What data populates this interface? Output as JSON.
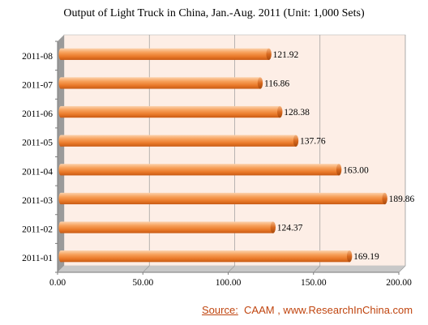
{
  "chart_data": {
    "type": "bar",
    "orientation": "horizontal",
    "title": "Output of Light Truck in China, Jan.-Aug. 2011  (Unit: 1,000 Sets)",
    "categories": [
      "2011-01",
      "2011-02",
      "2011-03",
      "2011-04",
      "2011-05",
      "2011-06",
      "2011-07",
      "2011-08"
    ],
    "values": [
      169.19,
      124.37,
      189.86,
      163.0,
      137.76,
      128.38,
      116.86,
      121.92
    ],
    "value_labels": [
      "169.19",
      "124.37",
      "189.86",
      "163.00",
      "137.76",
      "128.38",
      "116.86",
      "121.92"
    ],
    "xlim": [
      0,
      200
    ],
    "x_ticks": [
      "0.00",
      "50.00",
      "100.00",
      "150.00",
      "200.00"
    ],
    "x_tick_values": [
      0,
      50,
      100,
      150,
      200
    ],
    "xlabel": "",
    "ylabel": "",
    "grid": "vertical",
    "bar_color": "#f28a3a",
    "plot_background": "#fdeee6",
    "wall_color": "#9a9a9a"
  },
  "source": {
    "label": "Source:",
    "text": "  CAAM , www.ResearchInChina.com"
  }
}
